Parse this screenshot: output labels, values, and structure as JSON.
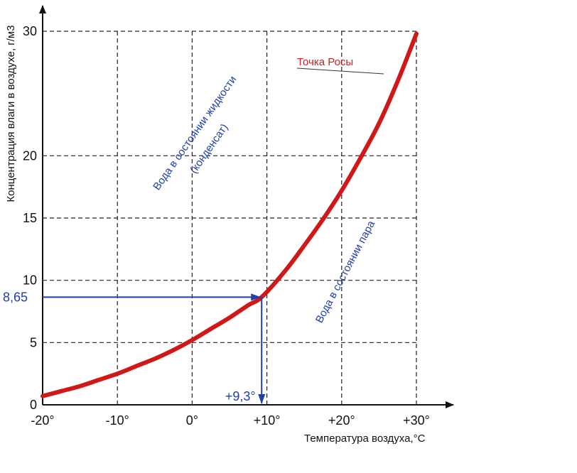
{
  "chart_data": {
    "type": "line",
    "xlabel": "Температура воздуха,°С",
    "ylabel": "Концентрация влаги в воздухе, г/м3",
    "xlim": [
      -20,
      30
    ],
    "ylim": [
      0,
      30
    ],
    "x_ticks": [
      -20,
      -10,
      0,
      10,
      20,
      30
    ],
    "x_tick_labels": [
      "-20°",
      "-10°",
      "0°",
      "+10°",
      "+20°",
      "+30°"
    ],
    "y_ticks": [
      0,
      5,
      10,
      15,
      20,
      30
    ],
    "y_tick_labels": [
      "0",
      "5",
      "10",
      "15",
      "20",
      "30"
    ],
    "grid": true,
    "series": [
      {
        "name": "Точка Росы",
        "color": "#d01818",
        "x": [
          -20,
          -17.5,
          -15,
          -12.5,
          -10,
          -7.5,
          -5,
          -2.5,
          0,
          2.5,
          5,
          7.5,
          9.3,
          12.5,
          15,
          17.5,
          20,
          22.5,
          25,
          27.5,
          30
        ],
        "y": [
          0.7,
          1.1,
          1.5,
          2.0,
          2.5,
          3.1,
          3.7,
          4.4,
          5.2,
          6.1,
          7.0,
          8.0,
          8.65,
          10.8,
          12.8,
          14.9,
          17.2,
          19.8,
          22.6,
          26.0,
          29.8
        ]
      }
    ],
    "annotations": {
      "region_liquid_line1": "Вода в состоянии жидкости",
      "region_liquid_line2": "(конденсат)",
      "region_vapor": "Вода в состоянии пара",
      "marker_y_value": 8.65,
      "marker_y_label": "8,65",
      "marker_x_value": 9.3,
      "marker_x_label": "+9,3°",
      "marker_color": "#1f3fae"
    }
  }
}
